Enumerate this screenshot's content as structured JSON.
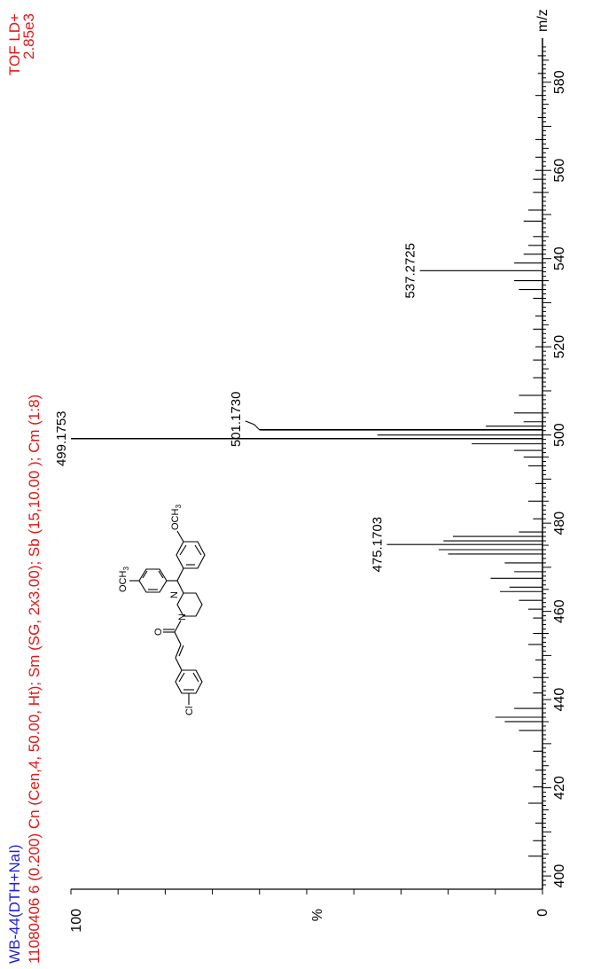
{
  "header": {
    "sample": "WB-44(DTH+NaI)",
    "scan_info": "11080406  6 (0.200) Cn (Cen,4, 50.00, Ht); Sm (SG, 2x3.00); Sb (15,10.00 ); Cm (1:8)",
    "mode": "TOF LD+",
    "intensity": "2.85e3",
    "xunit": "m/z",
    "yunit": "%"
  },
  "colors": {
    "header_blue": "#1f1fd6",
    "header_red": "#e01818",
    "ink": "#000000"
  },
  "chart_data": {
    "type": "bar",
    "xlabel": "m/z",
    "ylabel": "%",
    "xlim": [
      397,
      590
    ],
    "ylim": [
      0,
      100
    ],
    "xticks": [
      400,
      420,
      440,
      460,
      480,
      500,
      520,
      540,
      560,
      580
    ],
    "yticks": [
      0,
      100
    ],
    "peaks": [
      {
        "x": 404.5,
        "y": 3
      },
      {
        "x": 408.0,
        "y": 2
      },
      {
        "x": 412.0,
        "y": 1.5
      },
      {
        "x": 416.5,
        "y": 3
      },
      {
        "x": 420.2,
        "y": 2
      },
      {
        "x": 424.0,
        "y": 1.5
      },
      {
        "x": 428.3,
        "y": 2
      },
      {
        "x": 433.0,
        "y": 5
      },
      {
        "x": 435.0,
        "y": 8
      },
      {
        "x": 436.0,
        "y": 10
      },
      {
        "x": 438.0,
        "y": 6
      },
      {
        "x": 441.5,
        "y": 2
      },
      {
        "x": 445.0,
        "y": 2
      },
      {
        "x": 449.0,
        "y": 1.5
      },
      {
        "x": 452.5,
        "y": 3
      },
      {
        "x": 455.0,
        "y": 2
      },
      {
        "x": 458.5,
        "y": 2
      },
      {
        "x": 460.5,
        "y": 3
      },
      {
        "x": 462.5,
        "y": 5
      },
      {
        "x": 464.5,
        "y": 9
      },
      {
        "x": 465.5,
        "y": 7
      },
      {
        "x": 467.5,
        "y": 11
      },
      {
        "x": 469.0,
        "y": 6
      },
      {
        "x": 471.0,
        "y": 8
      },
      {
        "x": 473.0,
        "y": 20
      },
      {
        "x": 474.0,
        "y": 22
      },
      {
        "x": 475.17,
        "y": 33
      },
      {
        "x": 476.0,
        "y": 21
      },
      {
        "x": 477.0,
        "y": 19
      },
      {
        "x": 478.0,
        "y": 5
      },
      {
        "x": 481.0,
        "y": 2
      },
      {
        "x": 485.0,
        "y": 3
      },
      {
        "x": 489.0,
        "y": 1.5
      },
      {
        "x": 493.0,
        "y": 3
      },
      {
        "x": 495.0,
        "y": 4
      },
      {
        "x": 496.5,
        "y": 6
      },
      {
        "x": 498.0,
        "y": 15
      },
      {
        "x": 499.18,
        "y": 100
      },
      {
        "x": 500.0,
        "y": 35
      },
      {
        "x": 501.17,
        "y": 60
      },
      {
        "x": 502.0,
        "y": 12
      },
      {
        "x": 503.0,
        "y": 4
      },
      {
        "x": 505.0,
        "y": 6
      },
      {
        "x": 509.0,
        "y": 5
      },
      {
        "x": 513.0,
        "y": 2
      },
      {
        "x": 517.0,
        "y": 2
      },
      {
        "x": 520.0,
        "y": 1.5
      },
      {
        "x": 524.0,
        "y": 2
      },
      {
        "x": 527.0,
        "y": 1.5
      },
      {
        "x": 531.0,
        "y": 2
      },
      {
        "x": 533.0,
        "y": 5
      },
      {
        "x": 535.0,
        "y": 6
      },
      {
        "x": 537.27,
        "y": 26
      },
      {
        "x": 539.0,
        "y": 6
      },
      {
        "x": 541.0,
        "y": 4
      },
      {
        "x": 543.0,
        "y": 3
      },
      {
        "x": 545.0,
        "y": 2
      },
      {
        "x": 548.5,
        "y": 4
      },
      {
        "x": 551.0,
        "y": 3
      },
      {
        "x": 555.0,
        "y": 2
      },
      {
        "x": 558.0,
        "y": 2
      },
      {
        "x": 560.0,
        "y": 1.5
      },
      {
        "x": 563.0,
        "y": 1.5
      },
      {
        "x": 567.0,
        "y": 1.5
      },
      {
        "x": 572.0,
        "y": 1
      },
      {
        "x": 577.0,
        "y": 1.5
      },
      {
        "x": 582.0,
        "y": 1
      },
      {
        "x": 586.0,
        "y": 1
      }
    ],
    "annotations": [
      {
        "text": "475.1703",
        "x": 475.17,
        "y": 33
      },
      {
        "text": "499.1753",
        "x": 499.18,
        "y": 100
      },
      {
        "text": "501.1730",
        "x": 501.17,
        "y": 60
      },
      {
        "text": "537.2725",
        "x": 537.27,
        "y": 26
      }
    ]
  },
  "structure": {
    "labels": {
      "cl": "Cl",
      "o": "O",
      "n1": "N",
      "n2": "N",
      "och3_top": "OCH",
      "och3_bottom": "OCH",
      "sub3": "3"
    }
  }
}
